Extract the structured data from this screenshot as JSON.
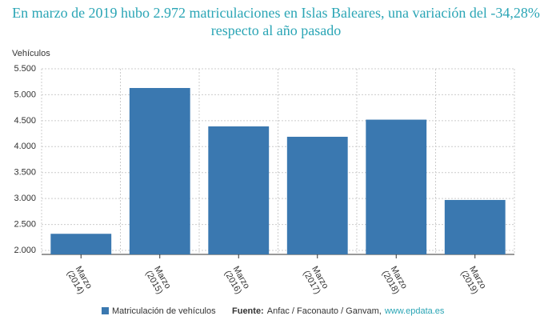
{
  "chart_data": {
    "type": "bar",
    "title": "En marzo de 2019 hubo 2.972 matriculaciones en Islas Baleares, una variación del -34,28% respecto al año pasado",
    "y_label": "Vehículos",
    "categories": [
      "Marzo (2014)",
      "Marzo (2015)",
      "Marzo (2016)",
      "Marzo (2017)",
      "Marzo (2018)",
      "Marzo (2019)"
    ],
    "series": [
      {
        "name": "Matriculación de vehículos",
        "color": "#3a78b0",
        "values": [
          2320,
          5130,
          4390,
          4190,
          4520,
          2972
        ]
      }
    ],
    "ylim": [
      2000,
      5500
    ],
    "yticks": [
      {
        "value": 2000,
        "label": "2.000"
      },
      {
        "value": 2500,
        "label": "2.500"
      },
      {
        "value": 3000,
        "label": "3.000"
      },
      {
        "value": 3500,
        "label": "3.500"
      },
      {
        "value": 4000,
        "label": "4.000"
      },
      {
        "value": 4500,
        "label": "4.500"
      },
      {
        "value": 5000,
        "label": "5.000"
      },
      {
        "value": 5500,
        "label": "5.500"
      }
    ],
    "grid": true,
    "source_label": "Fuente:",
    "source": "Anfac / Faconauto / Ganvam,",
    "source_link": "www.epdata.es"
  }
}
